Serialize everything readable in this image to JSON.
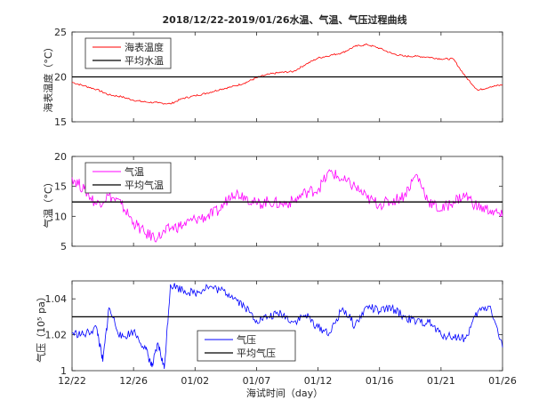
{
  "chart_data": [
    {
      "type": "line",
      "title": "2018/12/22-2019/01/26水温、气温、气压过程曲线",
      "ylabel": "海表温度（°C）",
      "xlabel": "",
      "ylim": [
        15,
        25
      ],
      "yticks": [
        "15",
        "20",
        "25"
      ],
      "xlim": [
        0,
        35
      ],
      "grid": false,
      "legend_position": "top-left",
      "series": [
        {
          "name": "海表温度",
          "color": "#ff0000",
          "x": [
            0,
            1,
            2,
            3,
            4,
            5,
            6,
            7,
            8,
            9,
            10,
            11,
            12,
            13,
            14,
            15,
            16,
            17,
            18,
            19,
            20,
            21,
            22,
            23,
            24,
            25,
            26,
            27,
            28,
            29,
            30,
            31,
            32,
            33,
            34,
            35
          ],
          "values": [
            19.4,
            19.0,
            18.6,
            18.0,
            17.8,
            17.4,
            17.2,
            17.1,
            17.0,
            17.6,
            17.9,
            18.2,
            18.6,
            18.9,
            19.3,
            19.9,
            20.3,
            20.5,
            20.6,
            21.4,
            22.1,
            22.4,
            22.7,
            23.4,
            23.6,
            23.2,
            22.6,
            22.3,
            22.3,
            22.2,
            22.0,
            22.0,
            20.0,
            18.5,
            18.9,
            19.1
          ]
        },
        {
          "name": "平均水温",
          "color": "#000000",
          "x": [
            0,
            35
          ],
          "values": [
            20.0,
            20.0
          ]
        }
      ]
    },
    {
      "type": "line",
      "title": "",
      "ylabel": "气温（°C）",
      "xlabel": "",
      "ylim": [
        5,
        20
      ],
      "yticks": [
        "5",
        "10",
        "15",
        "20"
      ],
      "xlim": [
        0,
        35
      ],
      "grid": false,
      "legend_position": "top-left",
      "series": [
        {
          "name": "气温",
          "color": "#ff00ff",
          "x": [
            0,
            1,
            2,
            3,
            4,
            5,
            6,
            7,
            8,
            9,
            10,
            11,
            12,
            13,
            14,
            15,
            16,
            17,
            18,
            19,
            20,
            21,
            22,
            23,
            24,
            25,
            26,
            27,
            28,
            29,
            30,
            31,
            32,
            33,
            34,
            35
          ],
          "values": [
            16.5,
            14.5,
            12.0,
            13.5,
            12.0,
            9.0,
            7.0,
            6.5,
            8.0,
            8.5,
            9.5,
            10.0,
            11.0,
            14.0,
            13.5,
            12.0,
            12.5,
            12.0,
            12.5,
            14.0,
            14.5,
            17.5,
            16.0,
            15.0,
            13.0,
            12.0,
            12.5,
            13.5,
            17.0,
            12.5,
            11.0,
            12.5,
            13.5,
            11.5,
            11.0,
            10.0
          ]
        },
        {
          "name": "平均气温",
          "color": "#000000",
          "x": [
            0,
            35
          ],
          "values": [
            12.4,
            12.4
          ]
        }
      ]
    },
    {
      "type": "line",
      "title": "",
      "ylabel": "气压（10⁵ pa）",
      "xlabel": "海试时间（day）",
      "ylim": [
        1.0,
        1.05
      ],
      "yticks": [
        "1",
        "1.02",
        "1.04"
      ],
      "xlim": [
        0,
        35
      ],
      "xticks": [
        "12/22",
        "12/26",
        "01/02",
        "01/07",
        "01/12",
        "01/16",
        "01/21",
        "01/26"
      ],
      "grid": false,
      "legend_position": "bottom-center",
      "series": [
        {
          "name": "气压",
          "color": "#0000ff",
          "x": [
            0,
            1,
            2,
            2.5,
            3,
            4,
            5,
            6,
            6.5,
            7,
            7.5,
            8,
            9,
            10,
            11,
            12,
            13,
            14,
            15,
            16,
            17,
            18,
            19,
            20,
            21,
            22,
            23,
            24,
            25,
            26,
            27,
            28,
            29,
            30,
            31,
            32,
            33,
            34,
            35
          ],
          "values": [
            1.021,
            1.02,
            1.024,
            1.005,
            1.035,
            1.018,
            1.022,
            1.012,
            1.002,
            1.015,
            1.001,
            1.048,
            1.045,
            1.043,
            1.047,
            1.045,
            1.042,
            1.036,
            1.028,
            1.03,
            1.032,
            1.027,
            1.031,
            1.024,
            1.021,
            1.035,
            1.025,
            1.036,
            1.033,
            1.035,
            1.03,
            1.027,
            1.027,
            1.02,
            1.019,
            1.018,
            1.033,
            1.036,
            1.013
          ]
        },
        {
          "name": "平均气压",
          "color": "#000000",
          "x": [
            0,
            35
          ],
          "values": [
            1.03,
            1.03
          ]
        }
      ]
    }
  ]
}
